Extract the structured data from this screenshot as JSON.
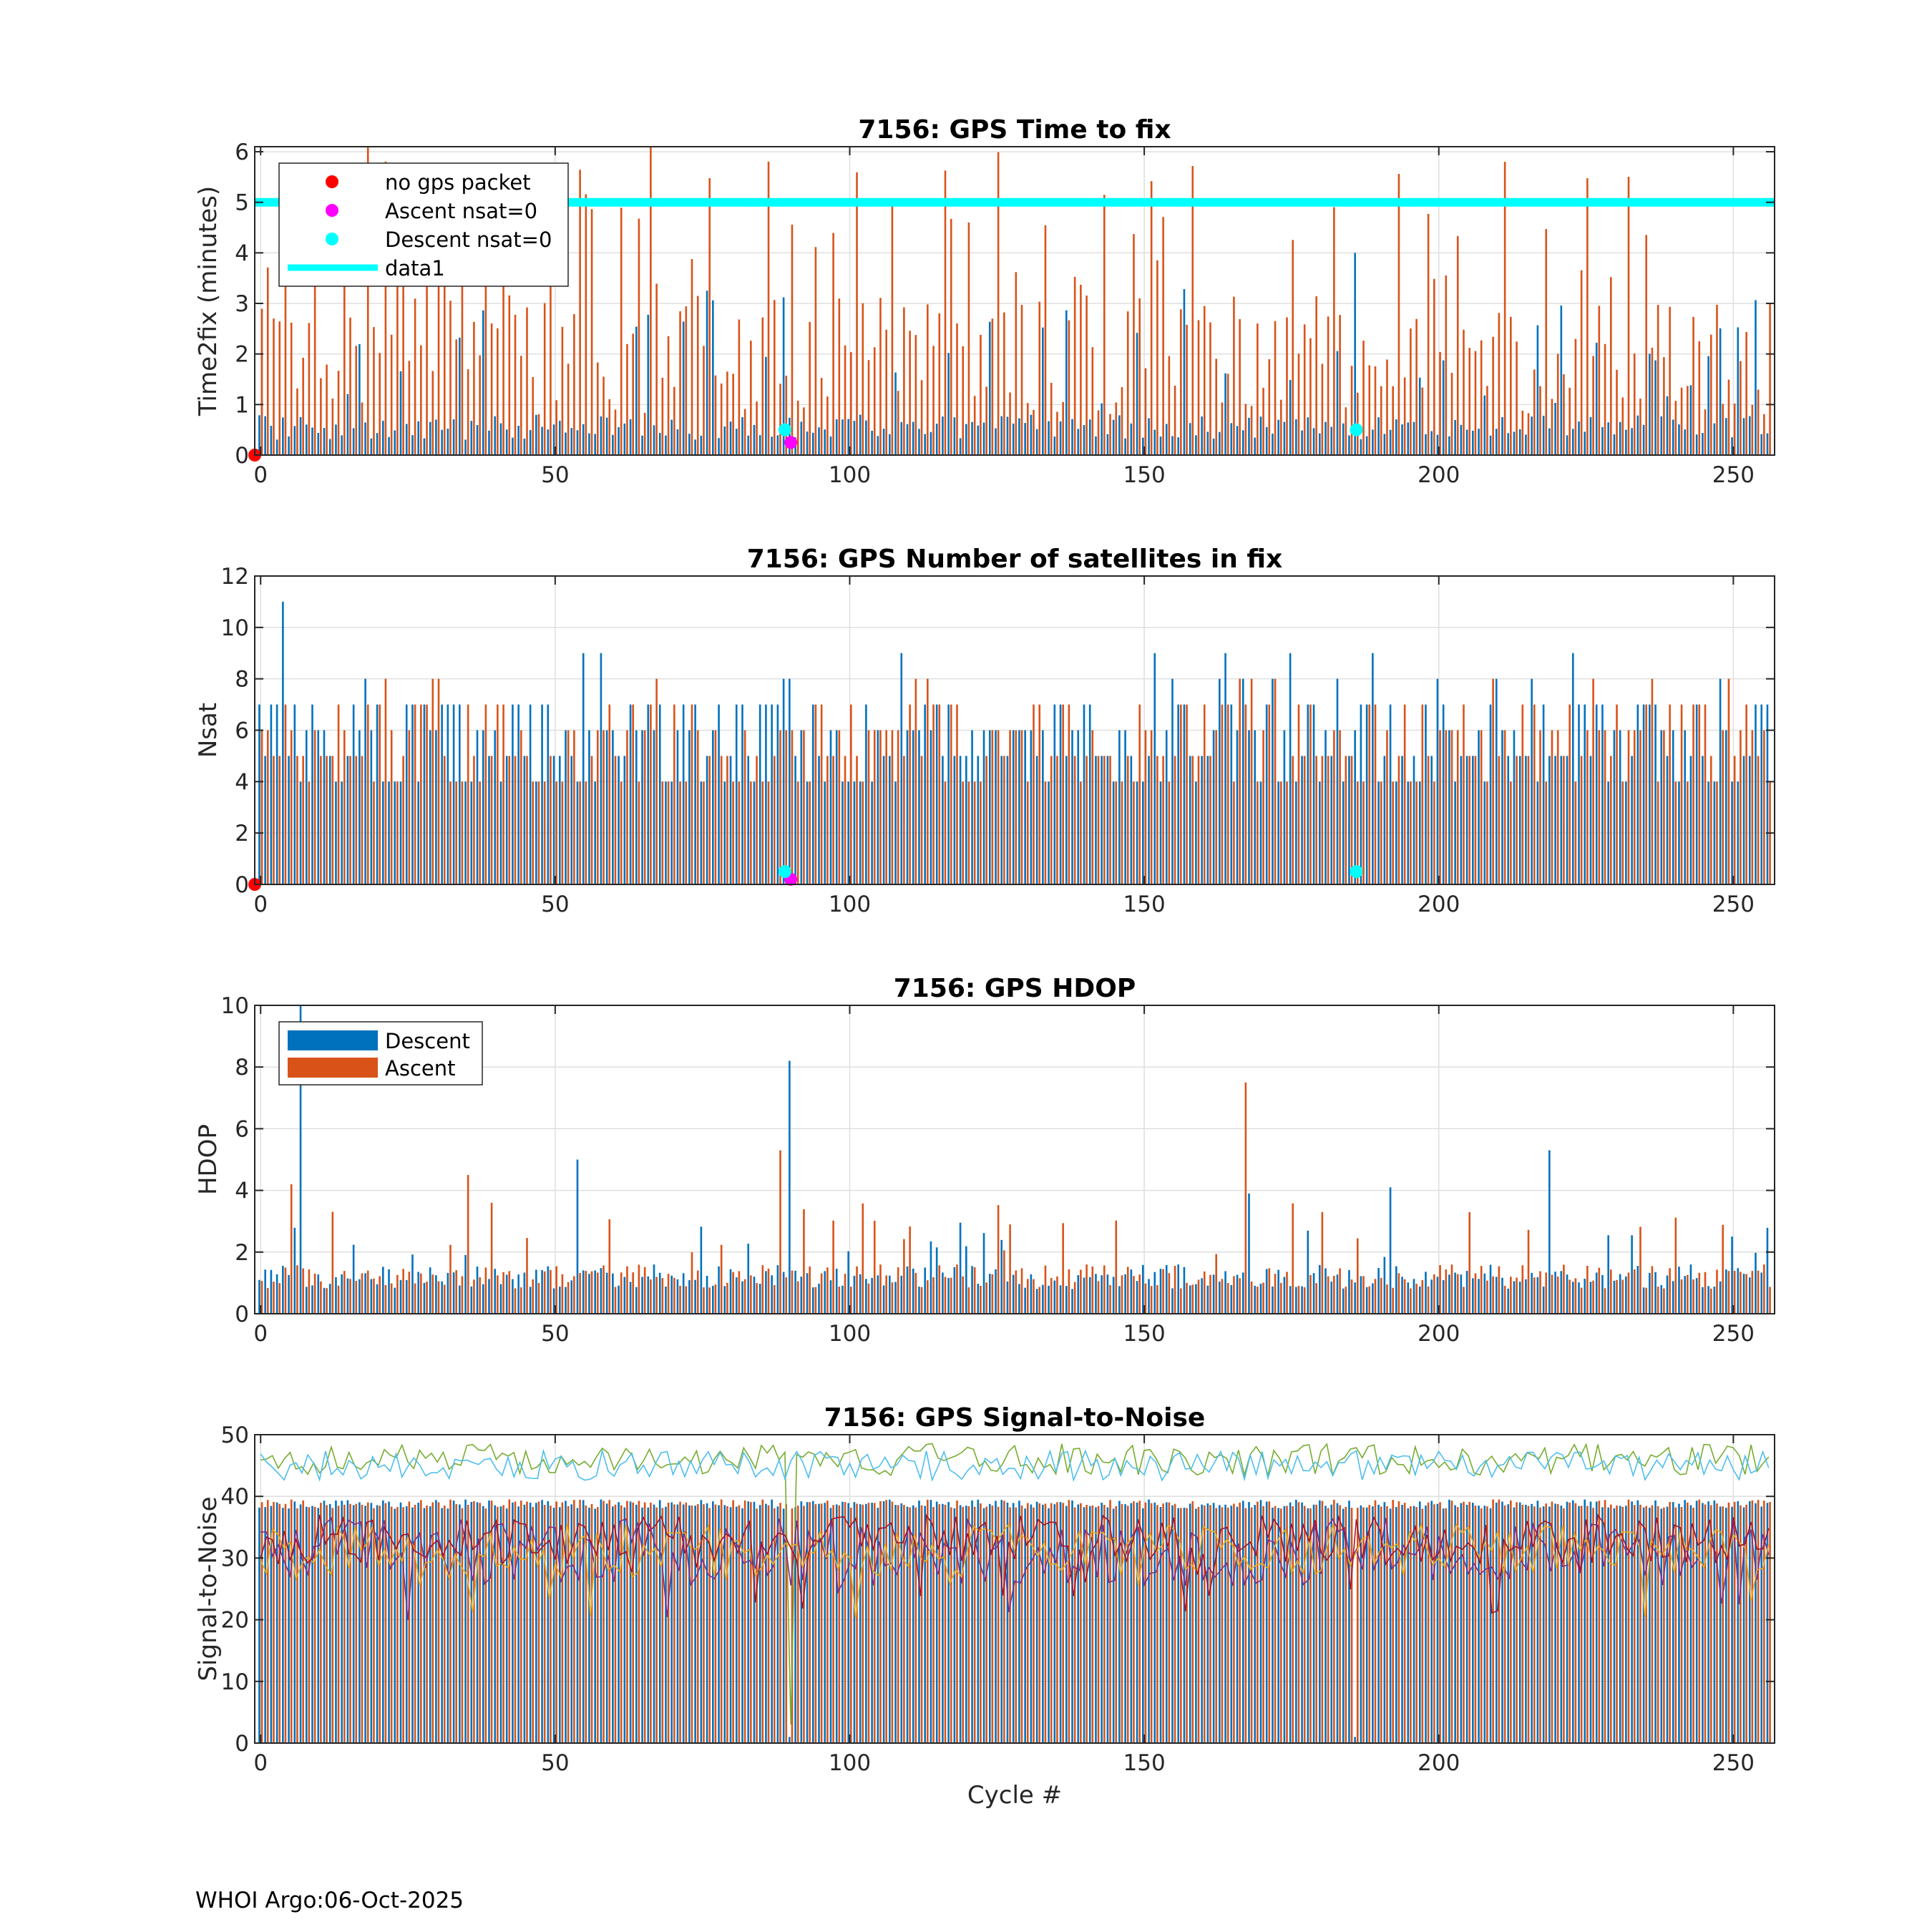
{
  "float_id": "7156",
  "footer": {
    "text": "WHOI Argo:06-Oct-2025"
  },
  "colors": {
    "descent": "#0072BD",
    "ascent": "#D95319",
    "no_gps": "#FF0000",
    "ascent_nsat0": "#FF00FF",
    "descent_nsat0": "#00FFFF",
    "data1": "#00FFFF",
    "snr_lines": [
      "#77AC30",
      "#4DBEEE",
      "#7E2F8E",
      "#EDB120",
      "#A2142F"
    ]
  },
  "chart_data": [
    {
      "type": "bar",
      "name": "time-to-fix",
      "title": "7156: GPS Time to fix",
      "xlabel": "",
      "ylabel": "Time2fix (minutes)",
      "xlim": [
        -1,
        257
      ],
      "ylim": [
        0,
        6.1
      ],
      "xticks": [
        0,
        50,
        100,
        150,
        200,
        250
      ],
      "yticks": [
        0,
        1,
        2,
        3,
        4,
        5,
        6
      ],
      "grid": true,
      "legend": {
        "location": "top-left",
        "entries": [
          "no gps packet",
          "Ascent nsat=0",
          "Descent nsat=0",
          "data1"
        ]
      },
      "reference_line": {
        "name": "data1",
        "y": 5
      },
      "series_note": "Descent values typically 0.3-0.8 with occasional spikes up to 4.0; Ascent values spread 0.8-6.1",
      "markers": [
        {
          "name": "no gps packet",
          "x": -1,
          "y": 0
        },
        {
          "name": "Ascent nsat=0",
          "x": 90,
          "y": 0.25
        },
        {
          "name": "Descent nsat=0",
          "x": 89,
          "y": 0.5
        },
        {
          "name": "Descent nsat=0",
          "x": 186,
          "y": 0.5
        }
      ]
    },
    {
      "type": "bar",
      "name": "nsat",
      "title": "7156: GPS Number of satellites in fix",
      "xlabel": "",
      "ylabel": "Nsat",
      "xlim": [
        -1,
        257
      ],
      "ylim": [
        0,
        12
      ],
      "xticks": [
        0,
        50,
        100,
        150,
        200,
        250
      ],
      "yticks": [
        0,
        2,
        4,
        6,
        8,
        10,
        12
      ],
      "grid": true,
      "series_note": "Both series mostly 4-7 satellites, peaks of 9-11",
      "markers": [
        {
          "name": "no gps packet",
          "x": -1,
          "y": 0
        },
        {
          "name": "Ascent nsat=0",
          "x": 90,
          "y": 0.2
        },
        {
          "name": "Descent nsat=0",
          "x": 89,
          "y": 0.5
        },
        {
          "name": "Descent nsat=0",
          "x": 186,
          "y": 0.5
        }
      ]
    },
    {
      "type": "bar",
      "name": "hdop",
      "title": "7156: GPS HDOP",
      "xlabel": "",
      "ylabel": "HDOP",
      "xlim": [
        -1,
        257
      ],
      "ylim": [
        0,
        10
      ],
      "xticks": [
        0,
        50,
        100,
        150,
        200,
        250
      ],
      "yticks": [
        0,
        2,
        4,
        6,
        8,
        10
      ],
      "grid": true,
      "legend": {
        "location": "top-left",
        "entries": [
          "Descent",
          "Ascent"
        ]
      },
      "series_note": "Typical HDOP 0.8-1.5 with spikes",
      "spikes": [
        {
          "series": "Descent",
          "x": 7,
          "y": 10
        },
        {
          "series": "Ascent",
          "x": 5,
          "y": 4.2
        },
        {
          "series": "Descent",
          "x": 54,
          "y": 5.0
        },
        {
          "series": "Ascent",
          "x": 35,
          "y": 4.5
        },
        {
          "series": "Ascent",
          "x": 88,
          "y": 5.3
        },
        {
          "series": "Descent",
          "x": 90,
          "y": 8.2
        },
        {
          "series": "Ascent",
          "x": 167,
          "y": 7.5
        },
        {
          "series": "Descent",
          "x": 168,
          "y": 3.9
        },
        {
          "series": "Descent",
          "x": 219,
          "y": 5.3
        },
        {
          "series": "Descent",
          "x": 192,
          "y": 4.1
        }
      ]
    },
    {
      "type": "line",
      "name": "snr",
      "title": "7156: GPS Signal-to-Noise",
      "xlabel": "Cycle #",
      "ylabel": "Signal-to-Noise",
      "xlim": [
        -1,
        257
      ],
      "ylim": [
        0,
        50
      ],
      "xticks": [
        0,
        50,
        100,
        150,
        200,
        250
      ],
      "yticks": [
        0,
        10,
        20,
        30,
        40,
        50
      ],
      "grid": true,
      "series_note": "Two upper satellites ~43-49, three lower ~20-40, bars Descent/Ascent ~38-40"
    }
  ]
}
